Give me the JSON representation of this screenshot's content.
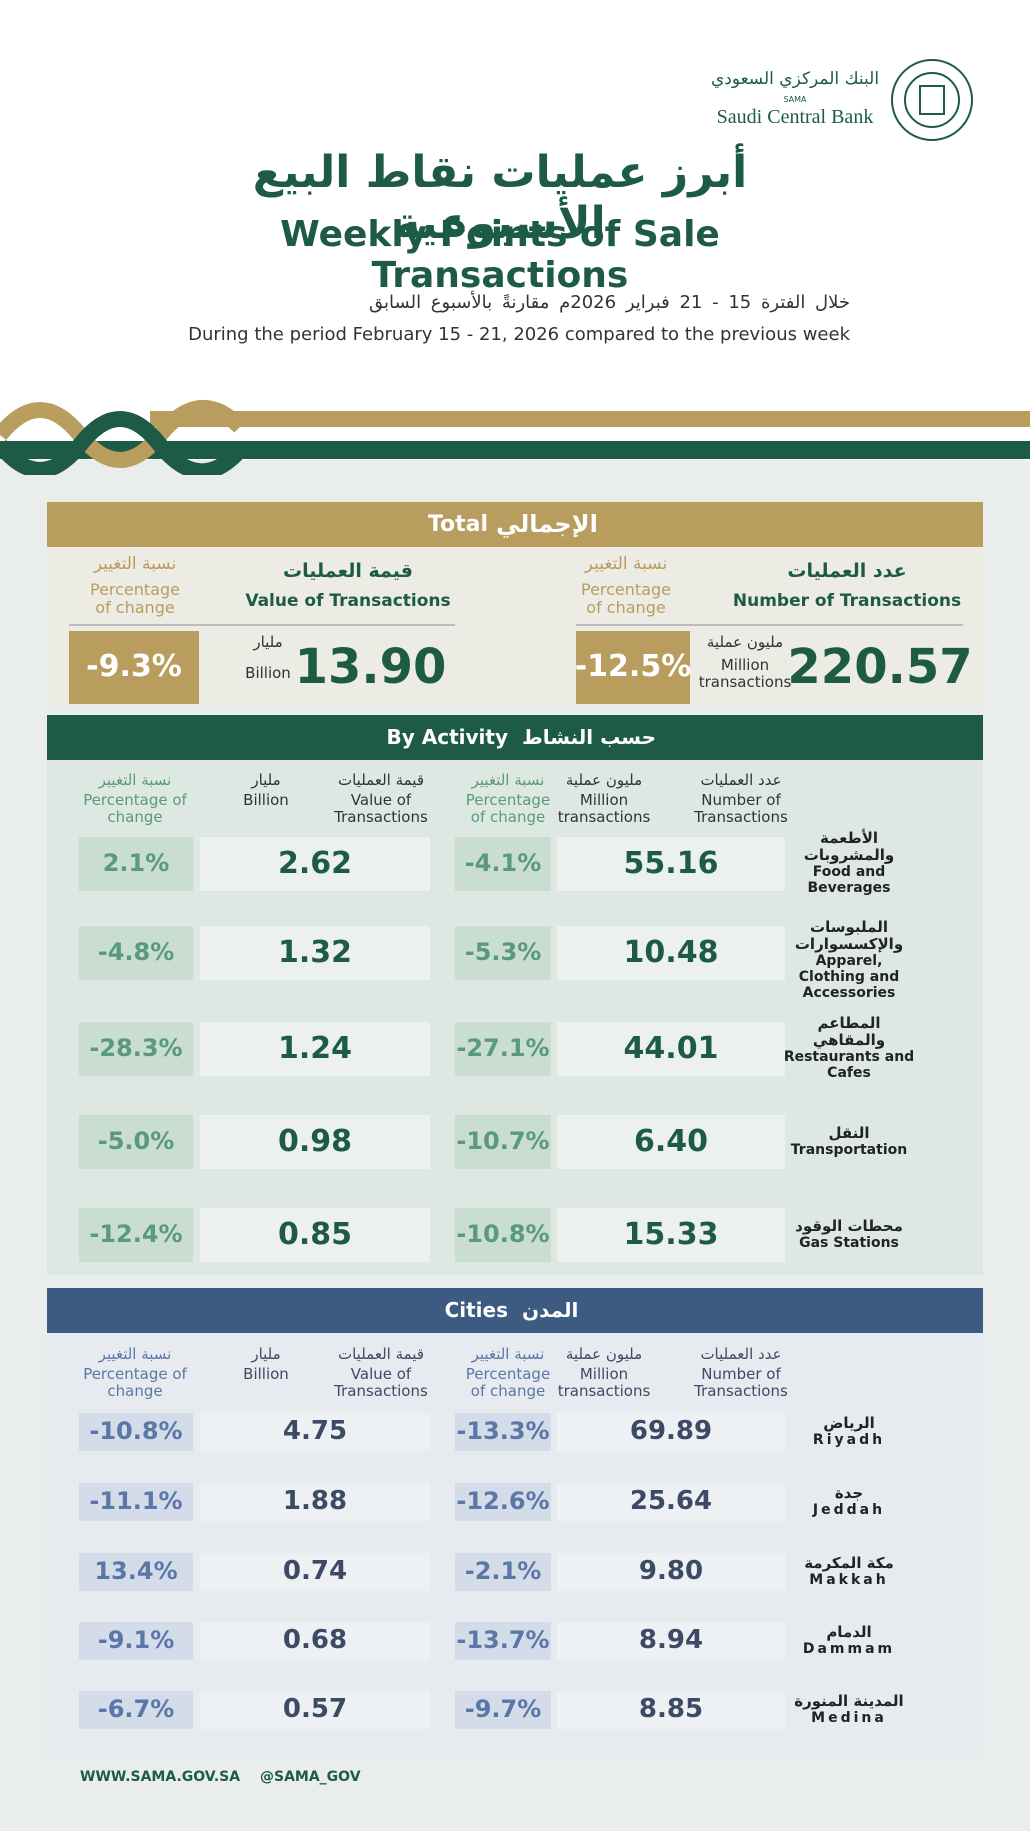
{
  "logo": {
    "arabic": "البنك المركزي السعودي",
    "sama": "SAMA",
    "english": "Saudi Central Bank"
  },
  "header": {
    "title_ar": "أبرز عمليات نقاط البيع الأسبوعية",
    "title_en": "Weekly Points of Sale Transactions",
    "subtitle_ar": "خلال الفترة 15 - 21 فبراير 2026م مقارنةً بالأسبوع السابق",
    "subtitle_en": "During the period February  15 - 21, 2026 compared to the previous week"
  },
  "total": {
    "heading_en": "Total",
    "heading_ar": "الإجمالي",
    "count": {
      "label_ar": "عدد العمليات",
      "label_en": "Number of Transactions",
      "change_label_ar": "نسبة التغيير",
      "change_label_en": "Percentage of change",
      "value": "220.57",
      "unit_ar": "مليون عملية",
      "unit_en": "Million transactions",
      "change": "-12.5%"
    },
    "amount": {
      "label_ar": "قيمة العمليات",
      "label_en": "Value of Transactions",
      "change_label_ar": "نسبة التغيير",
      "change_label_en": "Percentage of change",
      "value": "13.90",
      "unit_ar": "مليار",
      "unit_en": "Billion",
      "change": "-9.3%"
    }
  },
  "activity": {
    "heading_en": "By Activity",
    "heading_ar": "حسب النشاط",
    "columns": {
      "count": {
        "ar": "عدد العمليات",
        "en": "Number of Transactions"
      },
      "count_unit": {
        "ar": "مليون عملية",
        "en": "Million transactions"
      },
      "count_change": {
        "ar": "نسبة التغيير",
        "en": "Percentage of change"
      },
      "value": {
        "ar": "قيمة العمليات",
        "en": "Value of Transactions"
      },
      "value_unit": {
        "ar": "مليار",
        "en": "Billion"
      },
      "value_change": {
        "ar": "نسبة التغيير",
        "en": "Percentage of change"
      }
    },
    "rows": [
      {
        "name_ar": "الأطعمة والمشروبات",
        "name_en": "Food and Beverages",
        "count": "55.16",
        "count_change": "-4.1%",
        "value": "2.62",
        "value_change": "2.1%"
      },
      {
        "name_ar": "الملبوسات والإكسسوارات",
        "name_en": "Apparel, Clothing and Accessories",
        "count": "10.48",
        "count_change": "-5.3%",
        "value": "1.32",
        "value_change": "-4.8%"
      },
      {
        "name_ar": "المطاعم والمقاهي",
        "name_en": "Restaurants and Cafes",
        "count": "44.01",
        "count_change": "-27.1%",
        "value": "1.24",
        "value_change": "-28.3%"
      },
      {
        "name_ar": "النقل",
        "name_en": "Transportation",
        "count": "6.40",
        "count_change": "-10.7%",
        "value": "0.98",
        "value_change": "-5.0%"
      },
      {
        "name_ar": "محطات الوقود",
        "name_en": "Gas Stations",
        "count": "15.33",
        "count_change": "-10.8%",
        "value": "0.85",
        "value_change": "-12.4%"
      }
    ]
  },
  "cities": {
    "heading_en": "Cities",
    "heading_ar": "المدن",
    "columns": {
      "count": {
        "ar": "عدد العمليات",
        "en": "Number of Transactions"
      },
      "count_unit": {
        "ar": "مليون عملية",
        "en": "Million transactions"
      },
      "count_change": {
        "ar": "نسبة التغيير",
        "en": "Percentage of change"
      },
      "value": {
        "ar": "قيمة العمليات",
        "en": "Value of Transactions"
      },
      "value_unit": {
        "ar": "مليار",
        "en": "Billion"
      },
      "value_change": {
        "ar": "نسبة التغيير",
        "en": "Percentage of change"
      }
    },
    "rows": [
      {
        "name_ar": "الرياض",
        "name_en": "Riyadh",
        "count": "69.89",
        "count_change": "-13.3%",
        "value": "4.75",
        "value_change": "-10.8%"
      },
      {
        "name_ar": "جدة",
        "name_en": "Jeddah",
        "count": "25.64",
        "count_change": "-12.6%",
        "value": "1.88",
        "value_change": "-11.1%"
      },
      {
        "name_ar": "مكة المكرمة",
        "name_en": "Makkah",
        "count": "9.80",
        "count_change": "-2.1%",
        "value": "0.74",
        "value_change": "13.4%"
      },
      {
        "name_ar": "الدمام",
        "name_en": "Dammam",
        "count": "8.94",
        "count_change": "-13.7%",
        "value": "0.68",
        "value_change": "-9.1%"
      },
      {
        "name_ar": "المدينة المنورة",
        "name_en": "Medina",
        "count": "8.85",
        "count_change": "-9.7%",
        "value": "0.57",
        "value_change": "-6.7%"
      }
    ]
  },
  "footer": {
    "website": "WWW.SAMA.GOV.SA",
    "handle": "@SAMA_GOV"
  }
}
